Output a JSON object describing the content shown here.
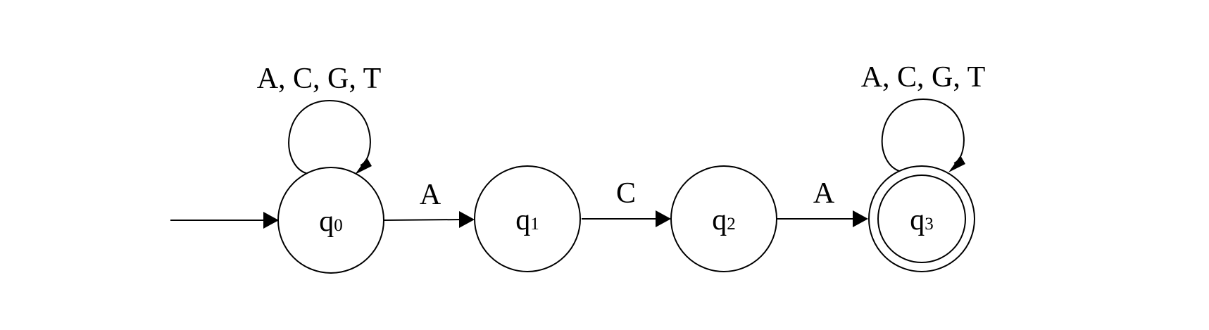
{
  "diagram": {
    "type": "finite-automaton",
    "start_state": "q0",
    "accepting_states": [
      "q3"
    ],
    "states": [
      {
        "id": "q0",
        "base": "q",
        "subscript": "0"
      },
      {
        "id": "q1",
        "base": "q",
        "subscript": "1"
      },
      {
        "id": "q2",
        "base": "q",
        "subscript": "2"
      },
      {
        "id": "q3",
        "base": "q",
        "subscript": "3"
      }
    ],
    "transitions": [
      {
        "from": "q0",
        "to": "q0",
        "label": "A, C, G, T"
      },
      {
        "from": "q0",
        "to": "q1",
        "label": "A"
      },
      {
        "from": "q1",
        "to": "q2",
        "label": "C"
      },
      {
        "from": "q2",
        "to": "q3",
        "label": "A"
      },
      {
        "from": "q3",
        "to": "q3",
        "label": "A, C, G, T"
      }
    ]
  }
}
